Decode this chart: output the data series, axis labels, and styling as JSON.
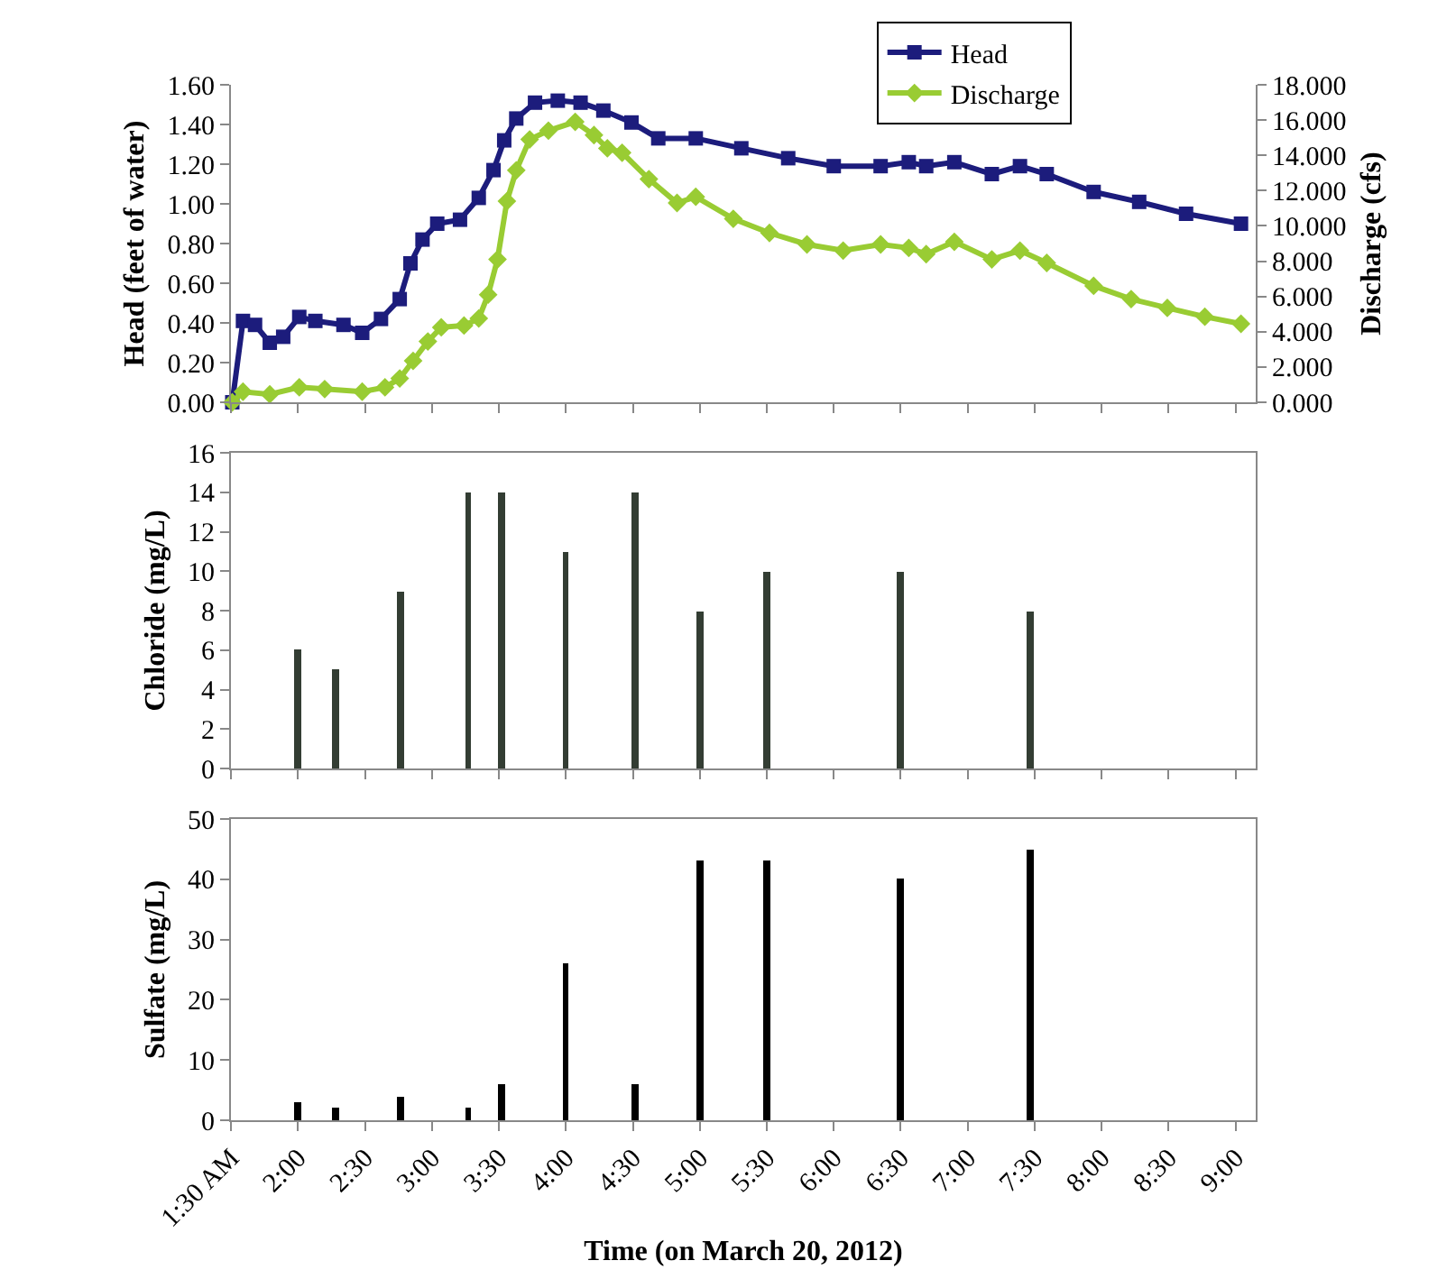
{
  "chart_data": [
    {
      "type": "line",
      "ylabel": "Head (feet of water)",
      "y2label": "Discharge (cfs)",
      "legend": "top",
      "grid": false,
      "line_style": "solid",
      "tick_labels": "y",
      "xlim": [
        1.5,
        9.15
      ],
      "xticks": [
        1.5,
        2,
        2.5,
        3,
        3.5,
        4,
        4.5,
        5,
        5.5,
        6,
        6.5,
        7,
        7.5,
        8,
        8.5,
        9
      ],
      "ylim": [
        0,
        1.6
      ],
      "yticks": [
        {
          "value": 0,
          "label": "0.00"
        },
        {
          "value": 0.2,
          "label": "0.20"
        },
        {
          "value": 0.4,
          "label": "0.40"
        },
        {
          "value": 0.6,
          "label": "0.60"
        },
        {
          "value": 0.8,
          "label": "0.80"
        },
        {
          "value": 1,
          "label": "1.00"
        },
        {
          "value": 1.2,
          "label": "1.20"
        },
        {
          "value": 1.4,
          "label": "1.40"
        },
        {
          "value": 1.6,
          "label": "1.60"
        }
      ],
      "y2lim": [
        0,
        18
      ],
      "y2ticks": [
        {
          "value": 0,
          "label": "0.000"
        },
        {
          "value": 2,
          "label": "2.000"
        },
        {
          "value": 4,
          "label": "4.000"
        },
        {
          "value": 6,
          "label": "6.000"
        },
        {
          "value": 8,
          "label": "8.000"
        },
        {
          "value": 10,
          "label": "10.000"
        },
        {
          "value": 12,
          "label": "12.000"
        },
        {
          "value": 14,
          "label": "14.000"
        },
        {
          "value": 16,
          "label": "16.000"
        },
        {
          "value": 18,
          "label": "18.000"
        }
      ],
      "series": [
        {
          "name": "Head",
          "color": "#1c1c7c",
          "marker": "square",
          "x": [
            1.51,
            1.59,
            1.68,
            1.79,
            1.89,
            2.01,
            2.13,
            2.34,
            2.48,
            2.62,
            2.76,
            2.84,
            2.93,
            3.04,
            3.21,
            3.35,
            3.46,
            3.54,
            3.63,
            3.77,
            3.94,
            4.11,
            4.28,
            4.49,
            4.69,
            4.97,
            5.31,
            5.66,
            6.0,
            6.35,
            6.56,
            6.69,
            6.9,
            7.18,
            7.39,
            7.59,
            7.94,
            8.28,
            8.63,
            9.04
          ],
          "values": [
            0.0,
            0.41,
            0.39,
            0.3,
            0.33,
            0.43,
            0.41,
            0.39,
            0.35,
            0.42,
            0.52,
            0.7,
            0.82,
            0.9,
            0.92,
            1.03,
            1.17,
            1.32,
            1.43,
            1.51,
            1.52,
            1.51,
            1.47,
            1.41,
            1.33,
            1.33,
            1.28,
            1.23,
            1.19,
            1.19,
            1.21,
            1.19,
            1.21,
            1.15,
            1.19,
            1.15,
            1.06,
            1.01,
            0.95,
            0.9
          ]
        },
        {
          "name": "Discharge",
          "color": "#99cc33",
          "marker": "diamond",
          "axis": "y2",
          "x": [
            1.51,
            1.59,
            1.79,
            2.01,
            2.2,
            2.48,
            2.65,
            2.76,
            2.86,
            2.97,
            3.07,
            3.24,
            3.35,
            3.42,
            3.49,
            3.56,
            3.63,
            3.73,
            3.87,
            4.07,
            4.21,
            4.31,
            4.42,
            4.62,
            4.83,
            4.97,
            5.25,
            5.52,
            5.8,
            6.07,
            6.35,
            6.56,
            6.69,
            6.9,
            7.18,
            7.39,
            7.59,
            7.94,
            8.22,
            8.49,
            8.77,
            9.04
          ],
          "values": [
            0,
            0.6,
            0.45,
            0.85,
            0.75,
            0.6,
            0.85,
            1.35,
            2.35,
            3.45,
            4.25,
            4.35,
            4.75,
            6.1,
            8.1,
            11.4,
            13.15,
            14.9,
            15.4,
            15.9,
            15.15,
            14.4,
            14.15,
            12.65,
            11.3,
            11.65,
            10.4,
            9.6,
            8.95,
            8.6,
            8.95,
            8.75,
            8.4,
            9.1,
            8.1,
            8.6,
            7.9,
            6.6,
            5.85,
            5.35,
            4.85,
            4.45
          ]
        }
      ]
    },
    {
      "type": "bar",
      "ylabel": "Chloride (mg/L)",
      "grid": false,
      "color": "#333d33",
      "tick_labels": "y",
      "x": [
        2.0,
        2.28,
        2.77,
        3.27,
        3.52,
        4.0,
        4.52,
        5.0,
        5.5,
        6.5,
        7.47
      ],
      "values": [
        6,
        5,
        9,
        14,
        14,
        11,
        14,
        8,
        10,
        10,
        8
      ],
      "xlim": [
        1.5,
        9.15
      ],
      "xticks": [
        1.5,
        2,
        2.5,
        3,
        3.5,
        4,
        4.5,
        5,
        5.5,
        6,
        6.5,
        7,
        7.5,
        8,
        8.5,
        9
      ],
      "ylim": [
        0,
        16
      ],
      "yticks": [
        0,
        2,
        4,
        6,
        8,
        10,
        12,
        14,
        16
      ]
    },
    {
      "type": "bar",
      "ylabel": "Sulfate (mg/L)",
      "xlabel": "Time (on March 20, 2012)",
      "grid": false,
      "color": "#000000",
      "x": [
        2.0,
        2.28,
        2.77,
        3.27,
        3.52,
        4.0,
        4.52,
        5.0,
        5.5,
        6.5,
        7.47
      ],
      "values": [
        3,
        2,
        4,
        2,
        6,
        26,
        6,
        43,
        43,
        40,
        45
      ],
      "xlim": [
        1.5,
        9.15
      ],
      "xticks": [
        {
          "value": 1.5,
          "label": "1:30 AM"
        },
        {
          "value": 2,
          "label": "2:00"
        },
        {
          "value": 2.5,
          "label": "2:30"
        },
        {
          "value": 3,
          "label": "3:00"
        },
        {
          "value": 3.5,
          "label": "3:30"
        },
        {
          "value": 4,
          "label": "4:00"
        },
        {
          "value": 4.5,
          "label": "4:30"
        },
        {
          "value": 5,
          "label": "5:00"
        },
        {
          "value": 5.5,
          "label": "5:30"
        },
        {
          "value": 6,
          "label": "6:00"
        },
        {
          "value": 6.5,
          "label": "6:30"
        },
        {
          "value": 7,
          "label": "7:00"
        },
        {
          "value": 7.5,
          "label": "7:30"
        },
        {
          "value": 8,
          "label": "8:00"
        },
        {
          "value": 8.5,
          "label": "8:30"
        },
        {
          "value": 9,
          "label": "9:00"
        }
      ],
      "ylim": [
        0,
        50
      ],
      "yticks": [
        0,
        10,
        20,
        30,
        40,
        50
      ]
    }
  ]
}
